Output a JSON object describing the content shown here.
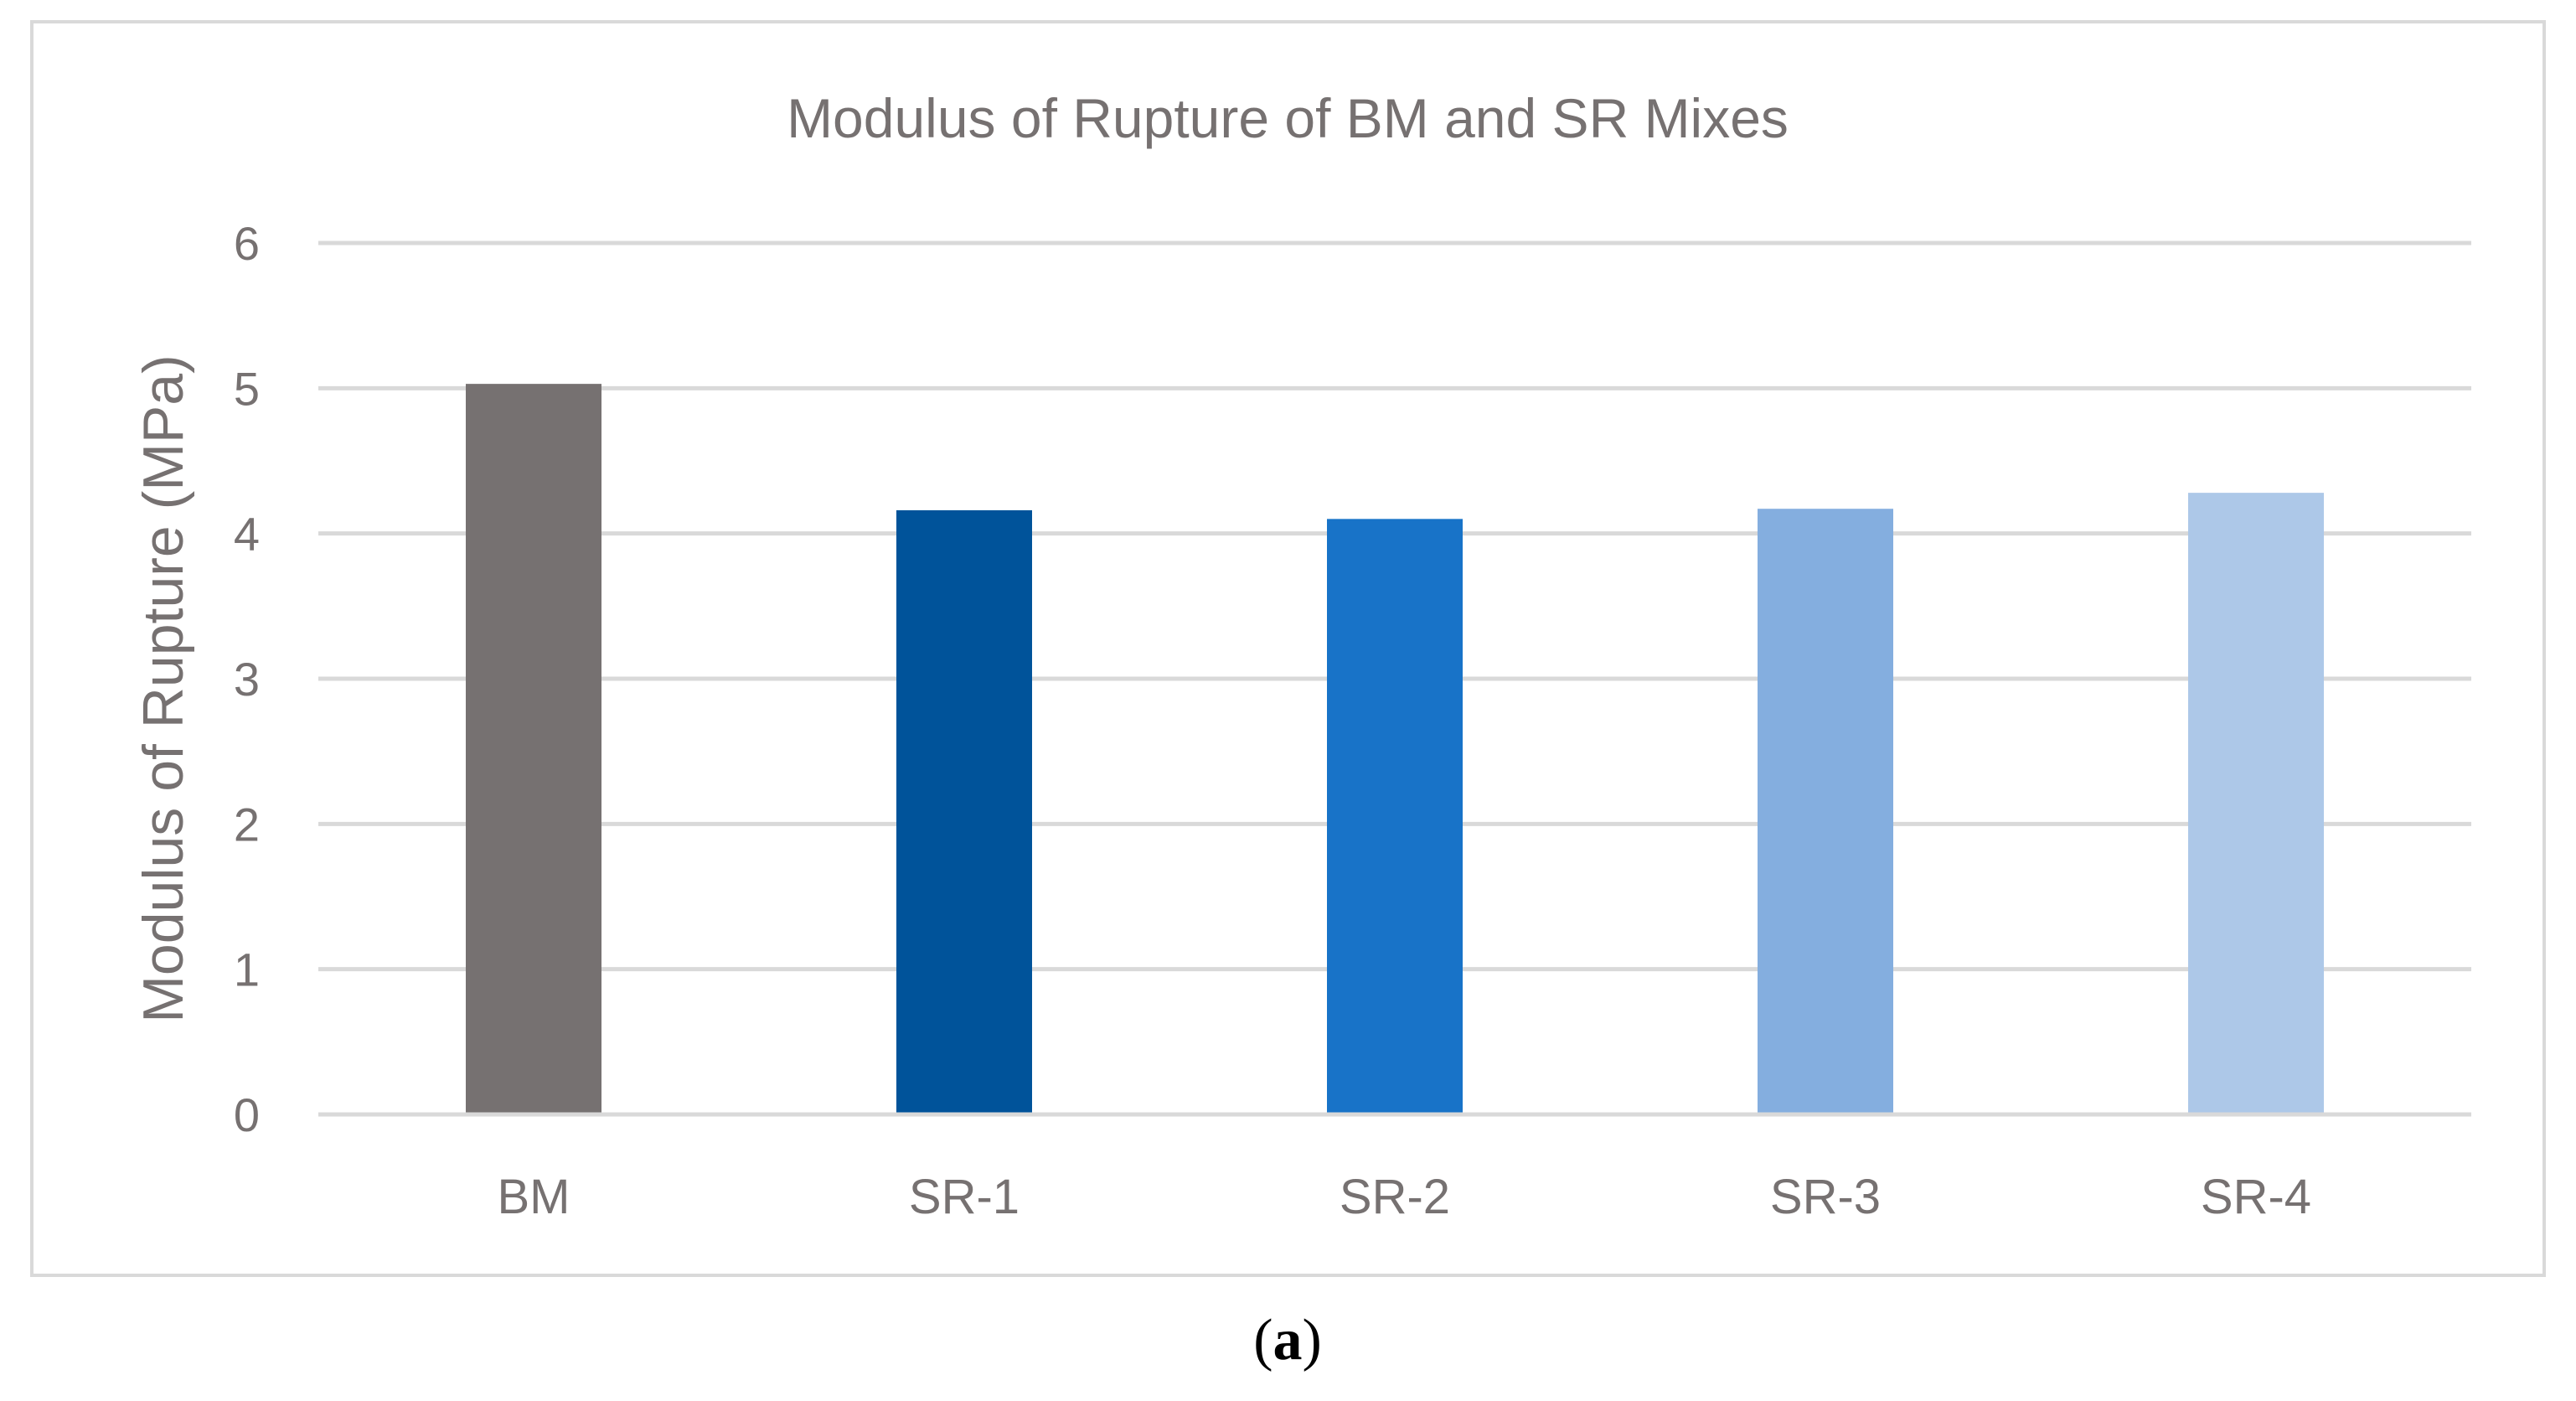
{
  "caption": {
    "open": "(",
    "letter": "a",
    "close": ")"
  },
  "colors": {
    "frame": "#d9d9d9",
    "grid": "#d9d9d9",
    "text": "#767171"
  },
  "chart_data": {
    "type": "bar",
    "title": "Modulus of Rupture of BM and SR Mixes",
    "xlabel": "",
    "ylabel": "Modulus of Rupture  (MPa)",
    "categories": [
      "BM",
      "SR-1",
      "SR-2",
      "SR-3",
      "SR-4"
    ],
    "values": [
      5.03,
      4.16,
      4.1,
      4.17,
      4.28
    ],
    "bar_colors": [
      "#767171",
      "#00539a",
      "#1873c8",
      "#84aedf",
      "#adc8e8"
    ],
    "ylim": [
      0,
      6
    ],
    "yticks": [
      "0",
      "1",
      "2",
      "3",
      "4",
      "5",
      "6"
    ],
    "grid": true,
    "legend": "none"
  }
}
